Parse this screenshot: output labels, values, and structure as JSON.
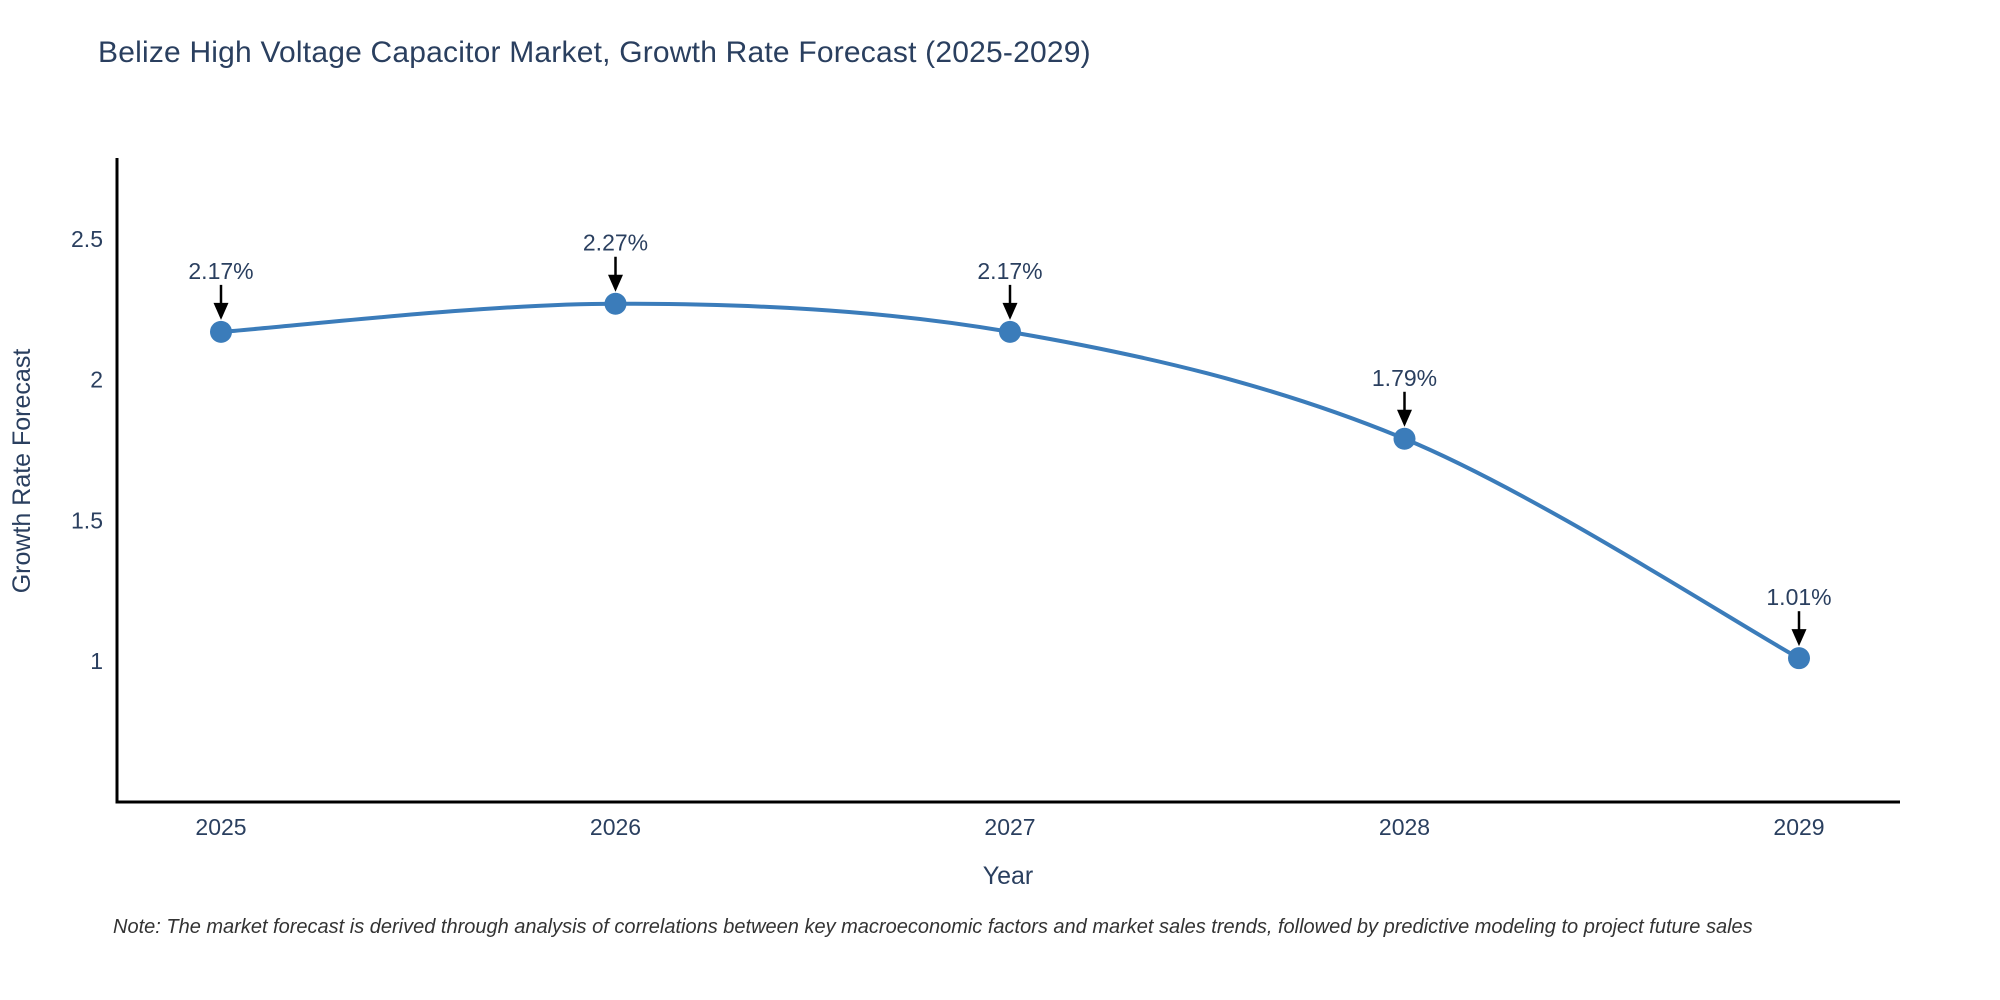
{
  "page": {
    "note": "Note: The market forecast is derived through analysis of correlations between key macroeconomic factors and market sales trends, followed by predictive modeling to project future sales"
  },
  "chart_data": {
    "type": "line",
    "title": "Belize High Voltage Capacitor Market, Growth Rate Forecast (2025-2029)",
    "xlabel": "Year",
    "ylabel": "Growth Rate Forecast",
    "x": [
      2025,
      2026,
      2027,
      2028,
      2029
    ],
    "x_tick_labels": [
      "2025",
      "2026",
      "2027",
      "2028",
      "2029"
    ],
    "y_tick_values": [
      1,
      1.5,
      2,
      2.5
    ],
    "y_tick_labels": [
      "1",
      "1.5",
      "2",
      "2.5"
    ],
    "series": [
      {
        "name": "Growth Rate Forecast",
        "values": [
          2.17,
          2.27,
          2.17,
          1.79,
          1.01
        ]
      }
    ],
    "point_labels": [
      "2.17%",
      "2.27%",
      "2.17%",
      "1.79%",
      "1.01%"
    ],
    "ylim": [
      0.5,
      2.78
    ],
    "xlim": [
      2024.74,
      2029.26
    ],
    "grid": false,
    "legend_position": "none",
    "line_shape": "spline",
    "marker": "circle",
    "annotation_arrow": "down",
    "colors": {
      "line": "#3b7cba",
      "marker": "#3b7cba",
      "text": "#2a3f5f",
      "axis": "#000000",
      "arrow": "#000000",
      "note_text": "#333333",
      "background": "#ffffff"
    }
  }
}
